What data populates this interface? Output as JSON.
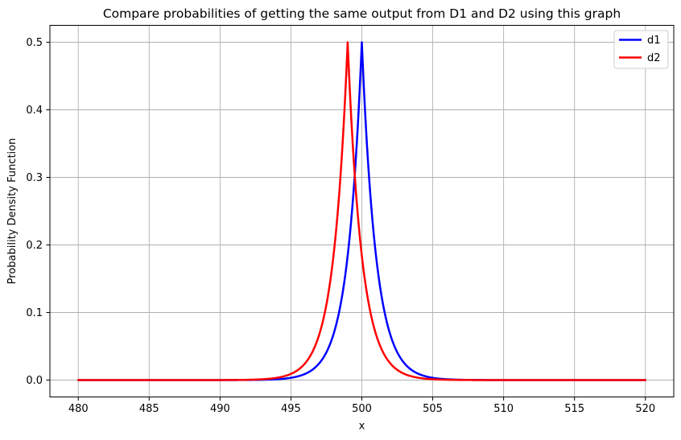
{
  "chart_data": {
    "type": "line",
    "title": "Compare probabilities of getting the same output from D1 and D2 using this graph",
    "xlabel": "x",
    "ylabel": "Probability Density Function",
    "xlim": [
      478,
      522
    ],
    "ylim": [
      -0.025,
      0.525
    ],
    "x_ticks": [
      480,
      485,
      490,
      495,
      500,
      505,
      510,
      515,
      520
    ],
    "x_tick_labels": [
      "480",
      "485",
      "490",
      "495",
      "500",
      "505",
      "510",
      "515",
      "520"
    ],
    "y_ticks": [
      0.0,
      0.1,
      0.2,
      0.3,
      0.4,
      0.5
    ],
    "y_tick_labels": [
      "0.0",
      "0.1",
      "0.2",
      "0.3",
      "0.4",
      "0.5"
    ],
    "grid": true,
    "grid_color": "#b0b0b0",
    "spine_color": "#000000",
    "background_color": "#ffffff",
    "line_width": 2.5,
    "legend": {
      "position": "upper right",
      "border_color": "#cccccc",
      "entries": [
        {
          "label": "d1",
          "color": "#0000ff"
        },
        {
          "label": "d2",
          "color": "#ff0000"
        }
      ]
    },
    "series": [
      {
        "name": "d1",
        "color": "#0000ff",
        "distribution": "laplace",
        "loc": 500,
        "scale": 1,
        "peak_value": 0.5,
        "x_start": 480,
        "x_end": 520,
        "formula": "f(x) = 0.5 * exp(-|x - 500|)"
      },
      {
        "name": "d2",
        "color": "#ff0000",
        "distribution": "laplace",
        "loc": 499,
        "scale": 1,
        "peak_value": 0.5,
        "x_start": 480,
        "x_end": 520,
        "formula": "f(x) = 0.5 * exp(-|x - 499|)"
      }
    ]
  }
}
